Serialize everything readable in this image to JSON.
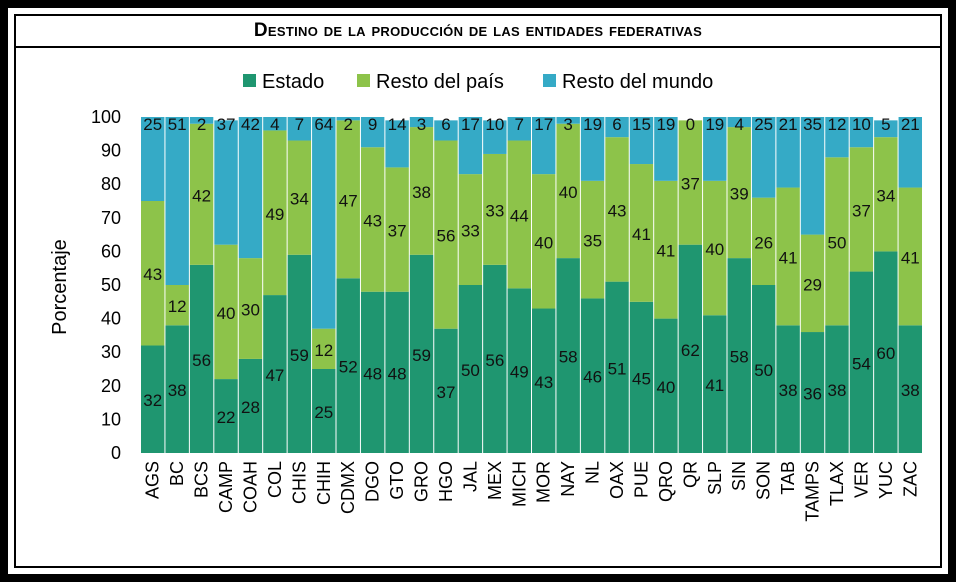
{
  "chart_data": {
    "type": "bar",
    "stacked": true,
    "title": "Destino de la producción de las entidades federativas",
    "ylabel": "Porcentaje",
    "xlabel": "",
    "ylim": [
      0,
      100
    ],
    "yticks": [
      "0",
      "10",
      "20",
      "30",
      "40",
      "50",
      "60",
      "70",
      "80",
      "90",
      "100"
    ],
    "legend_position": "top",
    "categories": [
      "AGS",
      "BC",
      "BCS",
      "CAMP",
      "COAH",
      "COL",
      "CHIS",
      "CHIH",
      "CDMX",
      "DGO",
      "GTO",
      "GRO",
      "HGO",
      "JAL",
      "MEX",
      "MICH",
      "MOR",
      "NAY",
      "NL",
      "OAX",
      "PUE",
      "QRO",
      "QR",
      "SLP",
      "SIN",
      "SON",
      "TAB",
      "TAMPS",
      "TLAX",
      "VER",
      "YUC",
      "ZAC"
    ],
    "series": [
      {
        "name": "Estado",
        "color": "#1f9670",
        "values": [
          32,
          38,
          56,
          22,
          28,
          47,
          59,
          25,
          52,
          48,
          48,
          59,
          37,
          50,
          56,
          49,
          43,
          58,
          46,
          51,
          45,
          40,
          62,
          41,
          58,
          50,
          38,
          36,
          38,
          54,
          60,
          38
        ]
      },
      {
        "name": "Resto del país",
        "color": "#8dc34a",
        "values": [
          43,
          12,
          42,
          40,
          30,
          49,
          34,
          12,
          47,
          43,
          37,
          38,
          56,
          33,
          33,
          44,
          40,
          40,
          35,
          43,
          41,
          41,
          37,
          40,
          39,
          26,
          41,
          29,
          50,
          37,
          34,
          41
        ]
      },
      {
        "name": "Resto del mundo",
        "color": "#35aac6",
        "values": [
          25,
          51,
          2,
          37,
          42,
          4,
          7,
          64,
          2,
          9,
          14,
          3,
          6,
          17,
          10,
          7,
          17,
          3,
          19,
          6,
          15,
          19,
          0,
          19,
          4,
          25,
          21,
          35,
          12,
          10,
          5,
          21
        ]
      }
    ]
  }
}
